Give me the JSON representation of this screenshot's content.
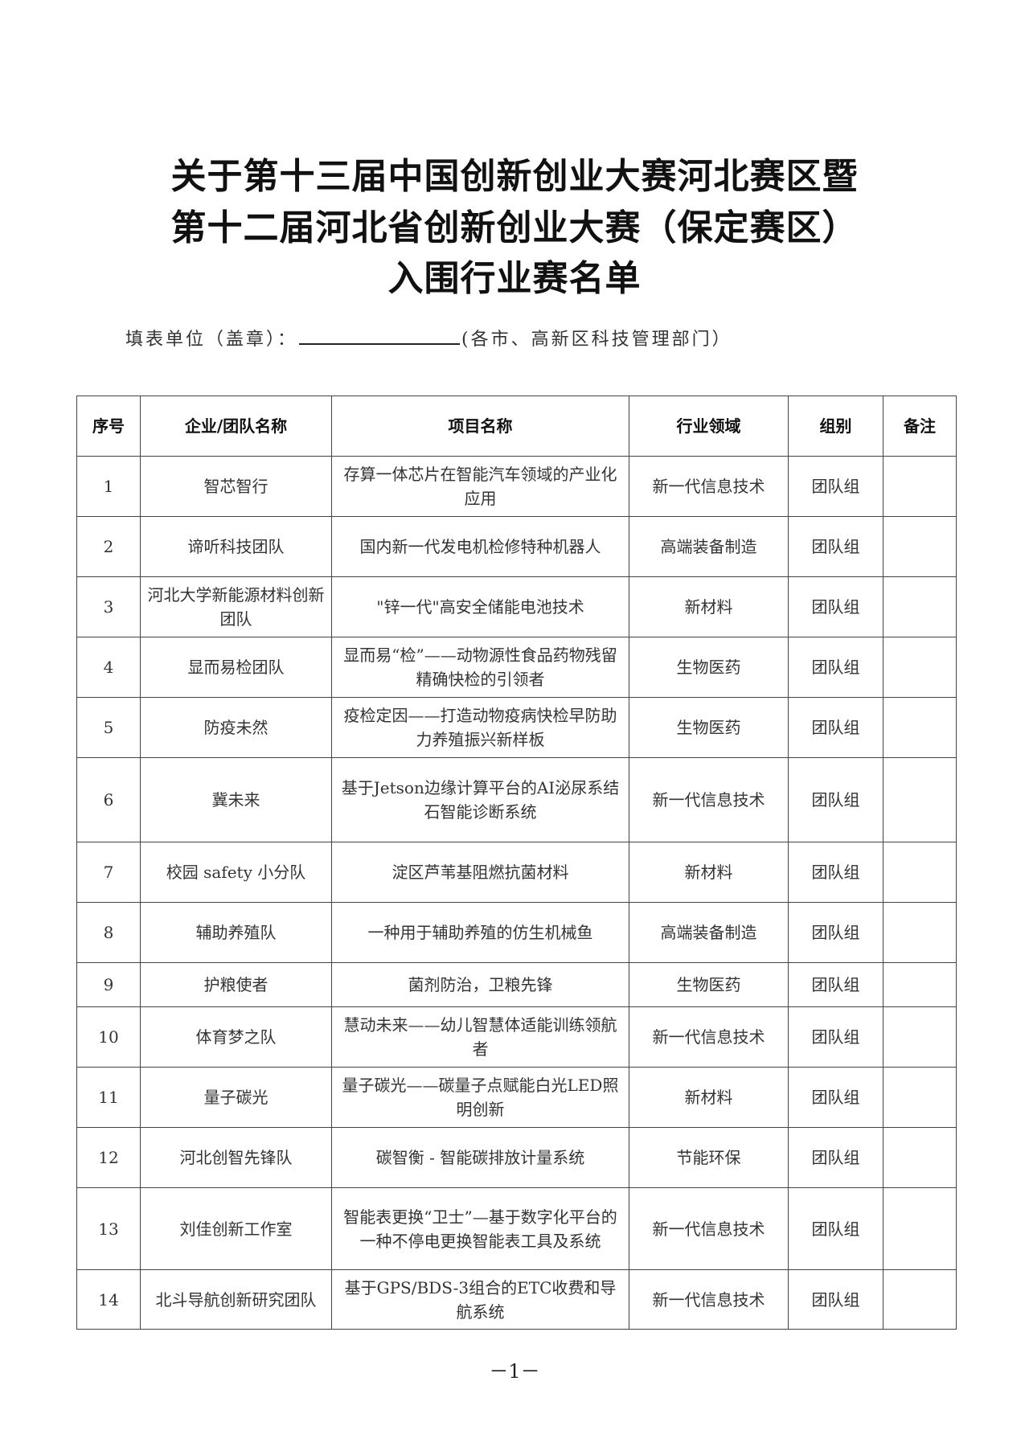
{
  "title_lines": [
    "关于第十三届中国创新创业大赛河北赛区暨",
    "第十二届河北省创新创业大赛（保定赛区）",
    "入围行业赛名单"
  ],
  "fill_label": "填表单位（盖章）：",
  "fill_note": "(各市、高新区科技管理部门）",
  "table": {
    "headers": [
      "序号",
      "企业/团队名称",
      "项目名称",
      "行业领域",
      "组别",
      "备注"
    ],
    "rows": [
      [
        "1",
        "智芯智行",
        "存算一体芯片在智能汽车领域的产业化应用",
        "新一代信息技术",
        "团队组",
        ""
      ],
      [
        "2",
        "谛听科技团队",
        "国内新一代发电机检修特种机器人",
        "高端装备制造",
        "团队组",
        ""
      ],
      [
        "3",
        "河北大学新能源材料创新团队",
        "\"锌一代\"高安全储能电池技术",
        "新材料",
        "团队组",
        ""
      ],
      [
        "4",
        "显而易检团队",
        "显而易“检”——动物源性食品药物残留精确快检的引领者",
        "生物医药",
        "团队组",
        ""
      ],
      [
        "5",
        "防疫未然",
        "疫检定因——打造动物疫病快检早防助力养殖振兴新样板",
        "生物医药",
        "团队组",
        ""
      ],
      [
        "6",
        "冀未来",
        "基于Jetson边缘计算平台的AI泌尿系结石智能诊断系统",
        "新一代信息技术",
        "团队组",
        ""
      ],
      [
        "7",
        "校园 safety 小分队",
        "淀区芦苇基阻燃抗菌材料",
        "新材料",
        "团队组",
        ""
      ],
      [
        "8",
        "辅助养殖队",
        "一种用于辅助养殖的仿生机械鱼",
        "高端装备制造",
        "团队组",
        ""
      ],
      [
        "9",
        "护粮使者",
        "菌剂防治，卫粮先锋",
        "生物医药",
        "团队组",
        ""
      ],
      [
        "10",
        "体育梦之队",
        "慧动未来——幼儿智慧体适能训练领航者",
        "新一代信息技术",
        "团队组",
        ""
      ],
      [
        "11",
        "量子碳光",
        "量子碳光——碳量子点赋能白光LED照明创新",
        "新材料",
        "团队组",
        ""
      ],
      [
        "12",
        "河北创智先锋队",
        "碳智衡 - 智能碳排放计量系统",
        "节能环保",
        "团队组",
        ""
      ],
      [
        "13",
        "刘佳创新工作室",
        "智能表更换“卫士”—基于数字化平台的一种不停电更换智能表工具及系统",
        "新一代信息技术",
        "团队组",
        ""
      ],
      [
        "14",
        "北斗导航创新研究团队",
        "基于GPS/BDS-3组合的ETC收费和导航系统",
        "新一代信息技术",
        "团队组",
        ""
      ]
    ]
  },
  "page_number": "－1－"
}
